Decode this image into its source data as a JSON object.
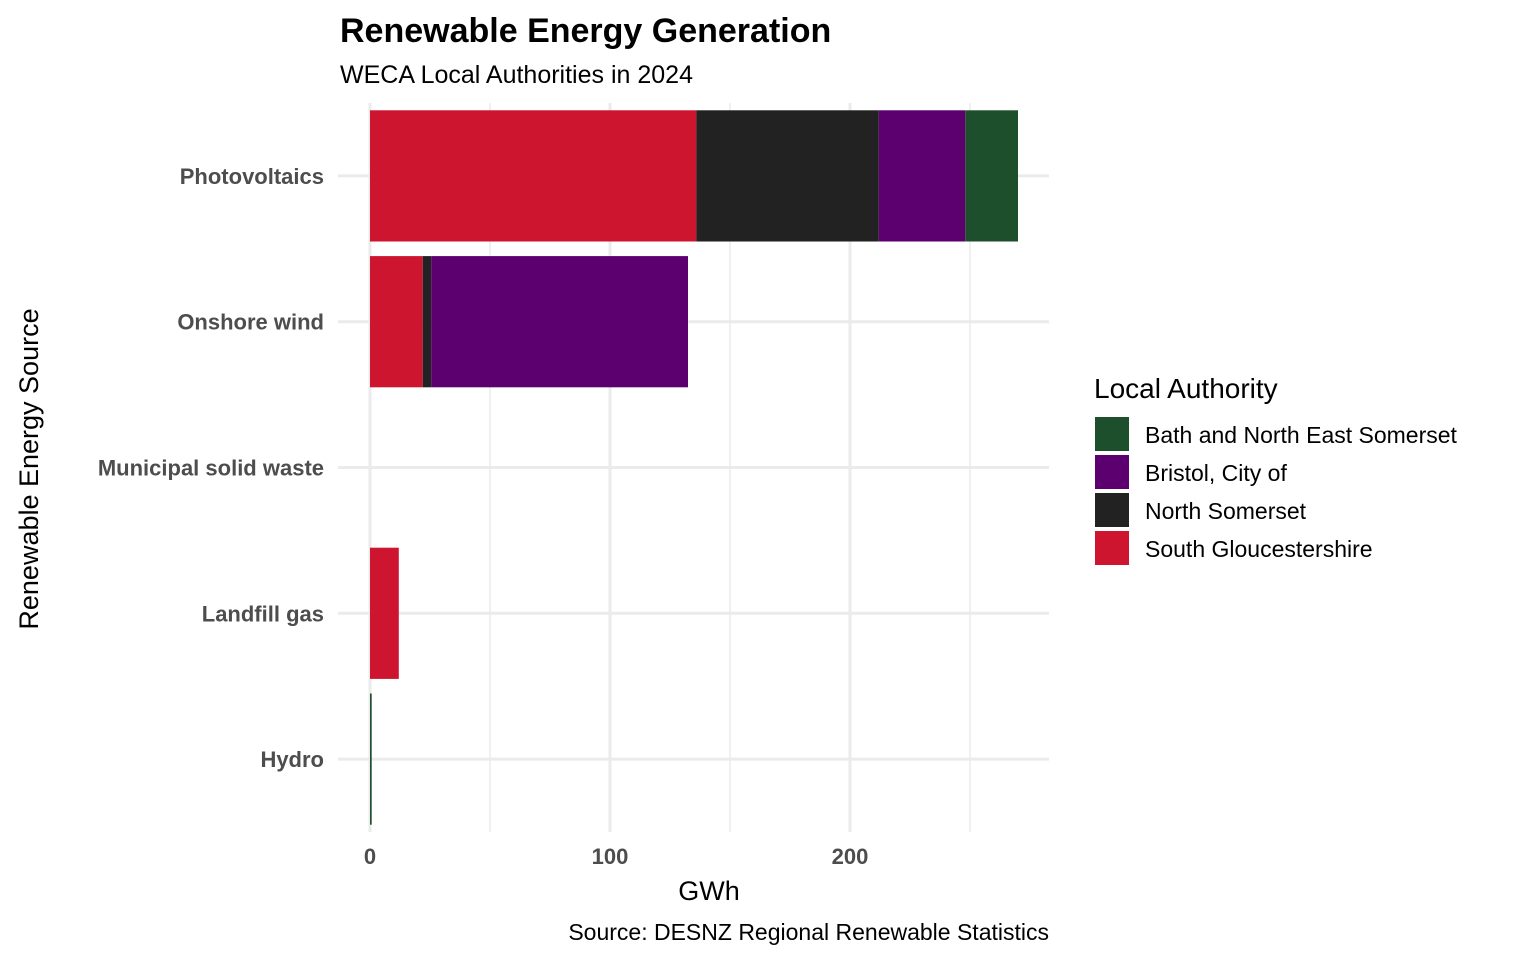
{
  "chart_data": {
    "type": "bar",
    "orientation": "horizontal",
    "stacked": true,
    "title": "Renewable Energy Generation",
    "subtitle": "WECA Local Authorities in 2024",
    "xlabel": "GWh",
    "ylabel": "Renewable Energy Source",
    "caption": "Source: DESNZ Regional Renewable Statistics",
    "categories": [
      "Photovoltaics",
      "Onshore wind",
      "Municipal solid waste",
      "Landfill gas",
      "Hydro"
    ],
    "xlim": [
      0,
      280
    ],
    "xticks": [
      0,
      100,
      200
    ],
    "grid": true,
    "legend": {
      "title": "Local Authority",
      "position": "right"
    },
    "series": [
      {
        "name": "South Gloucestershire",
        "color": "#ce1530",
        "values": [
          136,
          22,
          0,
          12,
          0
        ]
      },
      {
        "name": "North Somerset",
        "color": "#222222",
        "values": [
          76,
          3.5,
          0,
          0,
          0
        ]
      },
      {
        "name": "Bristol, City of",
        "color": "#5c0070",
        "values": [
          36,
          107,
          0,
          0,
          0
        ]
      },
      {
        "name": "Bath and North East Somerset",
        "color": "#1e4f2c",
        "values": [
          22,
          0,
          0,
          0,
          0.7
        ]
      }
    ],
    "legend_order": [
      "Bath and North East Somerset",
      "Bristol, City of",
      "North Somerset",
      "South Gloucestershire"
    ]
  }
}
